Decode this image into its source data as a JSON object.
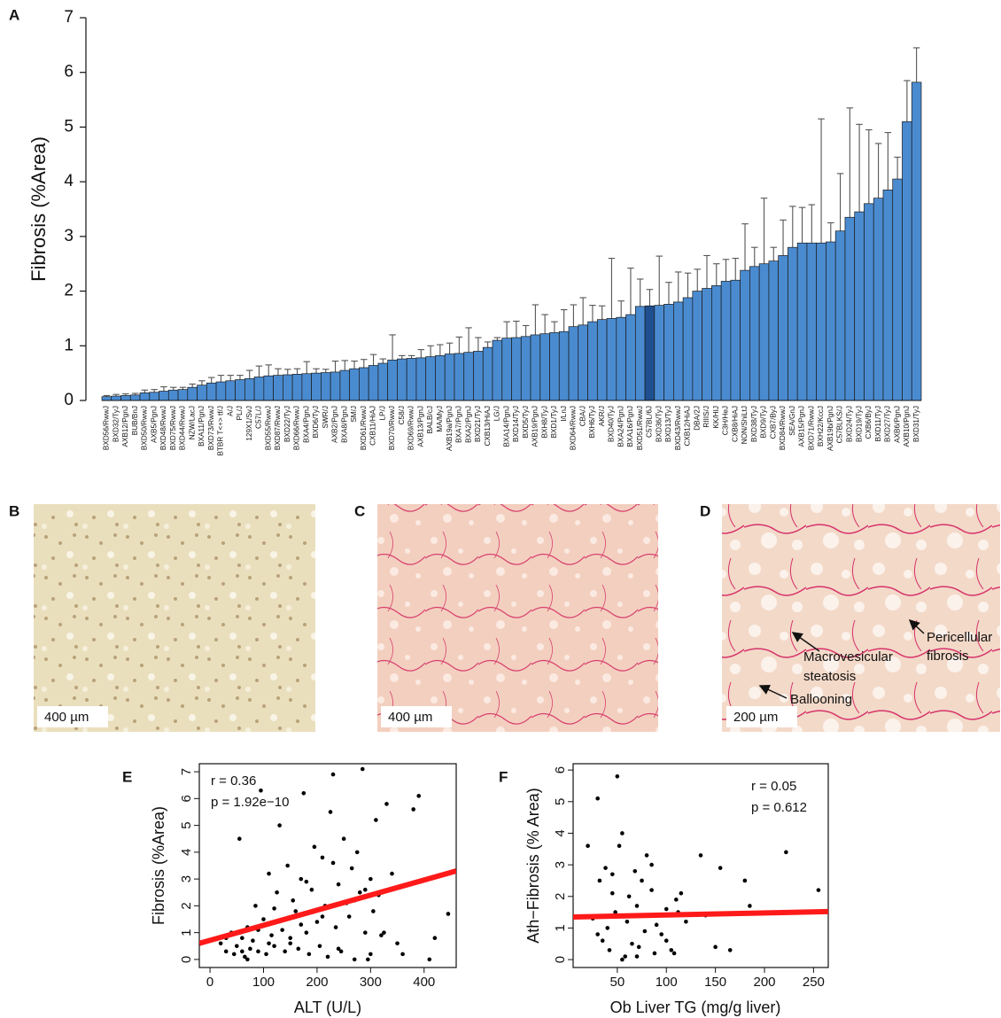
{
  "chart_data": [
    {
      "type": "bar",
      "panel": "A",
      "ylabel": "Fibrosis (%Area)",
      "categories": [
        "BXD56/RwwJ",
        "BXD32/TyJ",
        "AXB12/PgnJ",
        "BUB/BnJ",
        "BXD50/RwwJ",
        "AXB5/PgnJ",
        "BXD48/RwwJ",
        "BXD75/RwwJ",
        "BXD44/RwwJ",
        "NZW/LacJ",
        "BXA11/PgnJ",
        "BXD73/RwwJ",
        "BTBR T<+> tf/J",
        "A/J",
        "PL/J",
        "129X1/SvJ",
        "C57L/J",
        "BXD55/RwwJ",
        "BXD87/RwwJ",
        "BXD22/TyJ",
        "BXD66/RwwJ",
        "BXA4/PgnJ",
        "BXD6/TyJ",
        "SWR/J",
        "AXB2/PgnJ",
        "BXA8/PgnJ",
        "SM/J",
        "BXD61/RwwJ",
        "CXB11/HiAJ",
        "LP/J",
        "BXD70/RwwJ",
        "C58/J",
        "BXD69/RwwJ",
        "AXB13/PgnJ",
        "BALB/cJ",
        "MA/MyJ",
        "AXB19a/PgnJ",
        "BXA7/PgnJ",
        "BXA2/PgnJ",
        "BXD21/TyJ",
        "CXB13/HiAJ",
        "LG/J",
        "BXA14/PgnJ",
        "BXD14/TyJ",
        "BXD5/TyJ",
        "AXB19/PgnJ",
        "BXH8/TyJ",
        "BXD1/TyJ",
        "I/LnJ",
        "BXD64/RwwJ",
        "CBA/J",
        "BXH6/TyJ",
        "AKR/J",
        "BXD40/TyJ",
        "BXA24/PgnJ",
        "BXA16/PgnJ",
        "BXD51/RwwJ",
        "C57BL/6J",
        "BXD36/TyJ",
        "BXD13/TyJ",
        "BXD43/RwwJ",
        "CXB12/HiAJ",
        "DBA/2J",
        "RIIIS/J",
        "KK/HIJ",
        "C3H/HeJ",
        "CXB8/HiAJ",
        "NON/ShiLtJ",
        "BXD38/TyJ",
        "BXD9/TyJ",
        "CXB7/ByJ",
        "BXD84/RwwJ",
        "SEA/GnJ",
        "AXB15/PgnJ",
        "BXD71/RwwJ",
        "BXH22/KccJ",
        "AXB19b/PgnJ",
        "C57BLKS/J",
        "BXD24/TyJ",
        "BXD19/TyJ",
        "CXB6/ByJ",
        "BXD11/TyJ",
        "BXD27/TyJ",
        "AXB6/PgnJ",
        "AXB10/PgnJ",
        "BXD31/TyJ"
      ],
      "values": [
        0.07,
        0.08,
        0.09,
        0.1,
        0.14,
        0.15,
        0.17,
        0.19,
        0.2,
        0.24,
        0.28,
        0.32,
        0.34,
        0.36,
        0.38,
        0.4,
        0.43,
        0.45,
        0.46,
        0.47,
        0.48,
        0.49,
        0.5,
        0.51,
        0.52,
        0.55,
        0.58,
        0.6,
        0.64,
        0.68,
        0.74,
        0.76,
        0.77,
        0.78,
        0.8,
        0.82,
        0.85,
        0.86,
        0.88,
        0.9,
        0.97,
        1.1,
        1.14,
        1.15,
        1.17,
        1.2,
        1.22,
        1.24,
        1.26,
        1.35,
        1.38,
        1.44,
        1.48,
        1.5,
        1.52,
        1.57,
        1.72,
        1.73,
        1.74,
        1.76,
        1.8,
        1.88,
        2.0,
        2.05,
        2.1,
        2.18,
        2.2,
        2.38,
        2.45,
        2.5,
        2.55,
        2.65,
        2.8,
        2.88,
        2.88,
        2.88,
        2.9,
        3.1,
        3.35,
        3.45,
        3.6,
        3.7,
        3.85,
        4.05,
        5.1,
        5.82
      ],
      "errors": [
        0.02,
        0.03,
        0.03,
        0.03,
        0.05,
        0.05,
        0.08,
        0.05,
        0.04,
        0.06,
        0.08,
        0.1,
        0.12,
        0.1,
        0.08,
        0.15,
        0.2,
        0.2,
        0.12,
        0.1,
        0.1,
        0.22,
        0.08,
        0.06,
        0.2,
        0.18,
        0.14,
        0.15,
        0.2,
        0.08,
        0.46,
        0.06,
        0.05,
        0.15,
        0.2,
        0.2,
        0.2,
        0.3,
        0.45,
        0.25,
        0.1,
        0.05,
        0.3,
        0.3,
        0.2,
        0.55,
        0.35,
        0.2,
        0.4,
        0.4,
        0.5,
        0.3,
        0.25,
        1.1,
        0.3,
        0.85,
        0.5,
        0.3,
        0.9,
        0.4,
        0.55,
        0.45,
        0.4,
        0.6,
        0.4,
        0.4,
        0.4,
        0.85,
        0.35,
        1.2,
        0.25,
        0.65,
        0.75,
        0.65,
        0.7,
        2.27,
        0.35,
        1.05,
        2.0,
        1.6,
        1.35,
        1.0,
        1.05,
        0.4,
        0.75,
        0.63
      ],
      "color": "#4a8bd0",
      "highlight_category": "C57BL/6J",
      "highlight_color": "#1f4f8e",
      "error_color": "#555555",
      "ylim": [
        0,
        7
      ],
      "yticks": [
        0,
        1,
        2,
        3,
        4,
        5,
        6,
        7
      ]
    },
    {
      "type": "scatter",
      "panel": "E",
      "xlabel": "ALT (U/L)",
      "ylabel": "Fibrosis (%Area)",
      "x": [
        20,
        30,
        40,
        45,
        50,
        55,
        60,
        65,
        70,
        75,
        80,
        85,
        90,
        95,
        100,
        105,
        110,
        115,
        120,
        125,
        130,
        135,
        140,
        145,
        150,
        155,
        160,
        165,
        170,
        175,
        180,
        185,
        190,
        195,
        200,
        205,
        210,
        215,
        220,
        225,
        230,
        235,
        240,
        245,
        250,
        255,
        260,
        265,
        270,
        275,
        280,
        285,
        290,
        295,
        300,
        305,
        310,
        315,
        320,
        325,
        330,
        340,
        350,
        360,
        380,
        390,
        410,
        420,
        445,
        60,
        90,
        120,
        150,
        180,
        210,
        240,
        270,
        300,
        30,
        70,
        110,
        170,
        230,
        290
      ],
      "y": [
        0.6,
        0.3,
        1.0,
        0.2,
        0.5,
        4.5,
        0.8,
        0.1,
        1.2,
        0.4,
        0.7,
        2.0,
        0.3,
        6.3,
        1.5,
        0.2,
        3.2,
        0.9,
        0.5,
        2.5,
        5.0,
        1.1,
        0.3,
        3.5,
        0.6,
        2.2,
        1.8,
        0.4,
        3.0,
        6.2,
        1.0,
        0.2,
        2.6,
        4.2,
        1.4,
        0.5,
        3.8,
        2.0,
        0.1,
        5.5,
        6.9,
        1.2,
        2.8,
        0.3,
        4.5,
        2.1,
        1.6,
        3.4,
        0.0,
        4.0,
        2.5,
        7.1,
        1.0,
        0.0,
        3.0,
        1.8,
        5.2,
        2.4,
        0.9,
        1.0,
        5.8,
        3.2,
        0.6,
        0.2,
        5.6,
        6.1,
        0.0,
        0.8,
        1.7,
        0.3,
        1.1,
        1.9,
        0.8,
        2.9,
        1.6,
        0.4,
        2.2,
        0.2,
        0.8,
        0.0,
        0.6,
        1.3,
        3.6,
        2.6
      ],
      "color": "#000000",
      "fit": {
        "x": [
          -20,
          460
        ],
        "y": [
          0.6,
          3.3
        ],
        "color": "#ff1a1a"
      },
      "annotations": [
        "r = 0.36",
        "p = 1.92e−10"
      ],
      "xlim": [
        -20,
        460
      ],
      "xticks": [
        0,
        100,
        200,
        300,
        400
      ],
      "ylim": [
        -0.3,
        7.3
      ],
      "yticks": [
        0,
        1,
        2,
        3,
        4,
        5,
        6,
        7
      ]
    },
    {
      "type": "scatter",
      "panel": "F",
      "xlabel": "Ob Liver TG (mg/g liver)",
      "ylabel": "Ath−Fibrosis (% Area)",
      "x": [
        20,
        25,
        30,
        32,
        35,
        38,
        40,
        42,
        45,
        48,
        50,
        52,
        55,
        58,
        60,
        62,
        65,
        68,
        70,
        72,
        75,
        78,
        80,
        82,
        85,
        88,
        90,
        95,
        100,
        105,
        108,
        110,
        115,
        120,
        135,
        140,
        150,
        155,
        165,
        180,
        185,
        222,
        255,
        30,
        45,
        55,
        70,
        85,
        100,
        112
      ],
      "y": [
        3.6,
        1.3,
        5.1,
        2.5,
        0.6,
        2.9,
        1.0,
        0.3,
        2.7,
        1.5,
        5.8,
        3.6,
        4.0,
        0.1,
        1.2,
        2.0,
        0.5,
        2.8,
        1.7,
        0.4,
        2.5,
        0.9,
        3.3,
        1.4,
        2.2,
        0.2,
        1.1,
        0.8,
        1.6,
        0.3,
        0.2,
        1.9,
        2.1,
        1.2,
        3.3,
        1.4,
        0.4,
        2.9,
        0.3,
        2.5,
        1.7,
        3.4,
        2.2,
        0.8,
        2.1,
        0.0,
        0.1,
        3.0,
        0.6,
        1.5
      ],
      "color": "#000000",
      "fit": {
        "x": [
          5,
          265
        ],
        "y": [
          1.35,
          1.52
        ],
        "color": "#ff1a1a"
      },
      "annotations": [
        "r = 0.05",
        "p = 0.612"
      ],
      "xlim": [
        5,
        265
      ],
      "xticks": [
        50,
        100,
        150,
        200,
        250
      ],
      "ylim": [
        -0.25,
        6.2
      ],
      "yticks": [
        0,
        1,
        2,
        3,
        4,
        5,
        6
      ]
    }
  ],
  "panels": [
    {
      "letter": "B",
      "scale": "400 µm"
    },
    {
      "letter": "C",
      "scale": "400 µm"
    },
    {
      "letter": "D",
      "scale": "200 µm",
      "macro": [
        "Macrovesicular",
        "steatosis"
      ],
      "peri": [
        "Pericellular",
        "fibrosis"
      ],
      "balloon": "Ballooning"
    }
  ]
}
